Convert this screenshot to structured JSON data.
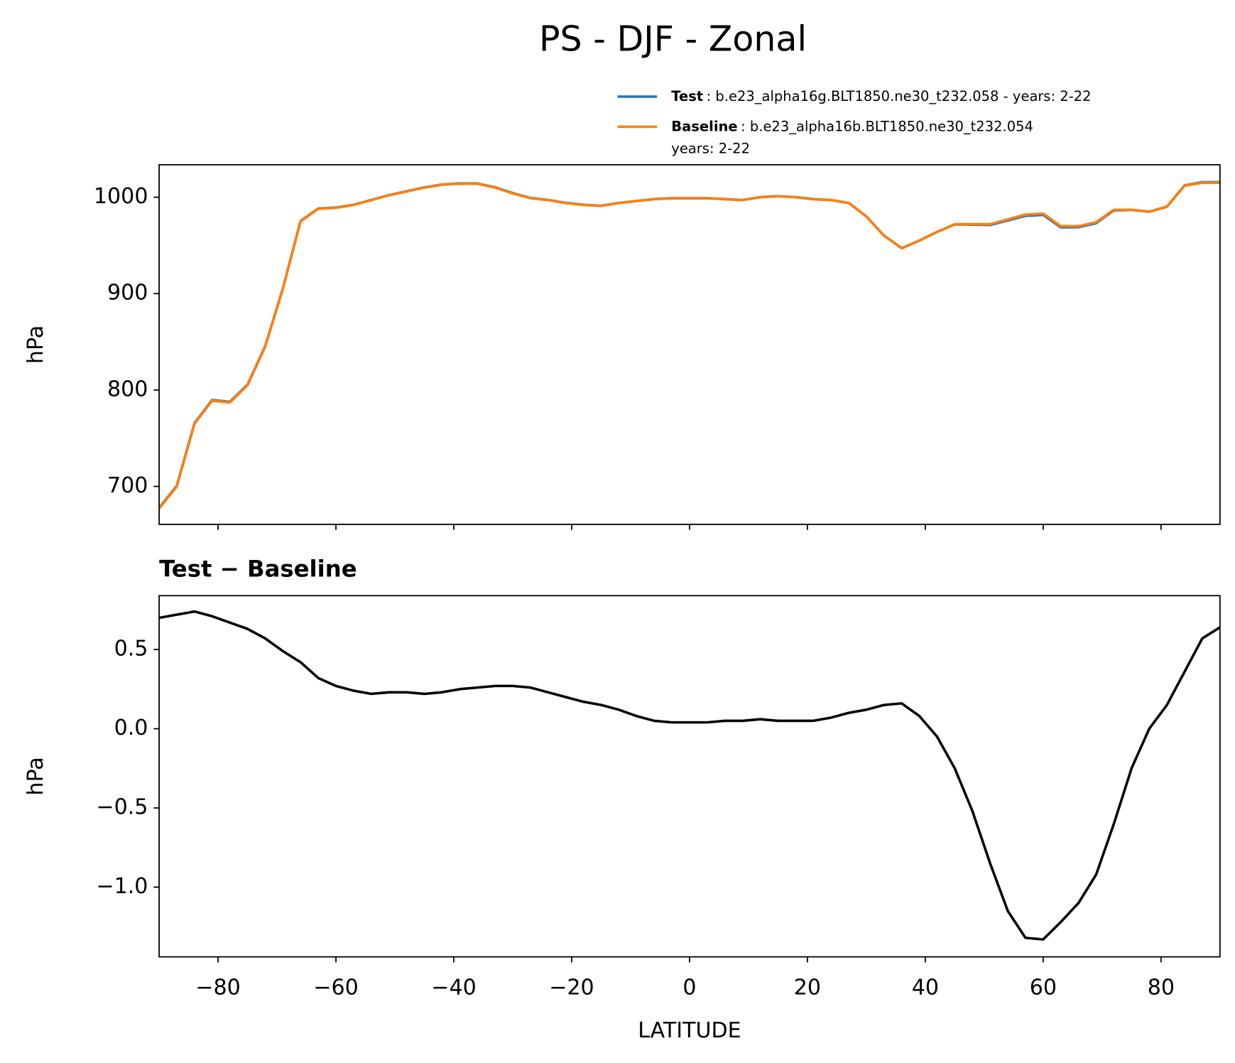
{
  "title": "PS - DJF - Zonal",
  "chart_data": [
    {
      "type": "line",
      "y_label": "hPa",
      "x": [
        -90,
        -87,
        -84,
        -81,
        -78,
        -75,
        -72,
        -69,
        -66,
        -63,
        -60,
        -57,
        -54,
        -51,
        -48,
        -45,
        -42,
        -39,
        -36,
        -33,
        -30,
        -27,
        -24,
        -21,
        -18,
        -15,
        -12,
        -9,
        -6,
        -3,
        0,
        3,
        6,
        9,
        12,
        15,
        18,
        21,
        24,
        27,
        30,
        33,
        36,
        39,
        42,
        45,
        48,
        51,
        54,
        57,
        60,
        63,
        66,
        69,
        72,
        75,
        78,
        81,
        84,
        87,
        90
      ],
      "series": [
        {
          "name": "Test",
          "description": ": b.e23_alpha16g.BLT1850.ne30_t232.058 - years: 2-22",
          "color": "#1f77b4",
          "values": [
            677.7,
            700.7,
            765.7,
            789.7,
            787.7,
            805.6,
            845.6,
            905.5,
            975.4,
            988.3,
            989.3,
            992.2,
            997.2,
            1002.2,
            1006.2,
            1010.2,
            1013.2,
            1014.3,
            1014.3,
            1010.3,
            1004.3,
            999.3,
            997.2,
            994.2,
            992.2,
            991.2,
            994.1,
            996.1,
            998.1,
            999.0,
            999.0,
            999.0,
            998.1,
            997.1,
            1000.1,
            1001.1,
            1000.1,
            998.1,
            997.1,
            994.1,
            980.1,
            960.2,
            947.2,
            955.1,
            964.0,
            971.8,
            971.5,
            971.2,
            975.9,
            980.7,
            981.7,
            968.8,
            968.9,
            973.1,
            986.4,
            986.8,
            985.0,
            990.2,
            1012.4,
            1015.6,
            1015.6
          ]
        },
        {
          "name": "Baseline",
          "description": [
            ": b.e23_alpha16b.BLT1850.ne30_t232.054",
            "years: 2-22"
          ],
          "color": "#ff7f0e",
          "values": [
            677,
            700,
            765,
            789,
            787,
            805,
            845,
            905,
            975,
            988,
            989,
            992,
            997,
            1002,
            1006,
            1010,
            1013,
            1014,
            1014,
            1010,
            1004,
            999,
            997,
            994,
            992,
            991,
            994,
            996,
            998,
            999,
            999,
            999,
            998,
            997,
            1000,
            1001,
            1000,
            998,
            997,
            994,
            980,
            960,
            947,
            955,
            964,
            972,
            972,
            972,
            977,
            982,
            983,
            970,
            970,
            974,
            987,
            987,
            985,
            990,
            1012,
            1015,
            1015
          ]
        }
      ],
      "xlim": [
        -90,
        90
      ],
      "xticks": [
        {
          "value": -80,
          "label": "−80"
        },
        {
          "value": -60,
          "label": "−60"
        },
        {
          "value": -40,
          "label": "−40"
        },
        {
          "value": -20,
          "label": "−20"
        },
        0,
        20,
        40,
        60,
        80
      ],
      "ylim": [
        660.6,
        1033.7
      ],
      "yticks": [
        700,
        800,
        900,
        1000
      ]
    },
    {
      "type": "line",
      "title": "Test − Baseline",
      "x_label": "LATITUDE",
      "y_label": "hPa",
      "x": [
        -90,
        -87,
        -84,
        -81,
        -78,
        -75,
        -72,
        -69,
        -66,
        -63,
        -60,
        -57,
        -54,
        -51,
        -48,
        -45,
        -42,
        -39,
        -36,
        -33,
        -30,
        -27,
        -24,
        -21,
        -18,
        -15,
        -12,
        -9,
        -6,
        -3,
        0,
        3,
        6,
        9,
        12,
        15,
        18,
        21,
        24,
        27,
        30,
        33,
        36,
        39,
        42,
        45,
        48,
        51,
        54,
        57,
        60,
        63,
        66,
        69,
        72,
        75,
        78,
        81,
        84,
        87,
        90
      ],
      "series": [
        {
          "color": "#000000",
          "values": [
            0.7,
            0.72,
            0.74,
            0.71,
            0.67,
            0.63,
            0.57,
            0.49,
            0.42,
            0.32,
            0.27,
            0.24,
            0.22,
            0.23,
            0.23,
            0.22,
            0.23,
            0.25,
            0.26,
            0.27,
            0.27,
            0.26,
            0.23,
            0.2,
            0.17,
            0.15,
            0.12,
            0.08,
            0.05,
            0.04,
            0.04,
            0.04,
            0.05,
            0.05,
            0.06,
            0.05,
            0.05,
            0.05,
            0.07,
            0.1,
            0.12,
            0.15,
            0.16,
            0.08,
            -0.05,
            -0.25,
            -0.52,
            -0.85,
            -1.15,
            -1.32,
            -1.33,
            -1.22,
            -1.1,
            -0.92,
            -0.6,
            -0.25,
            0.0,
            0.15,
            0.36,
            0.57,
            0.64
          ]
        }
      ],
      "xlim": [
        -90,
        90
      ],
      "xticks": [
        {
          "value": -80,
          "label": "−80"
        },
        {
          "value": -60,
          "label": "−60"
        },
        {
          "value": -40,
          "label": "−40"
        },
        {
          "value": -20,
          "label": "−20"
        },
        0,
        20,
        40,
        60,
        80
      ],
      "ylim": [
        -1.44,
        0.84
      ],
      "yticks": [
        {
          "value": -1.0,
          "label": "−1.0"
        },
        {
          "value": -0.5,
          "label": "−0.5"
        },
        {
          "value": 0,
          "label": "0.0"
        },
        0.5
      ]
    }
  ]
}
